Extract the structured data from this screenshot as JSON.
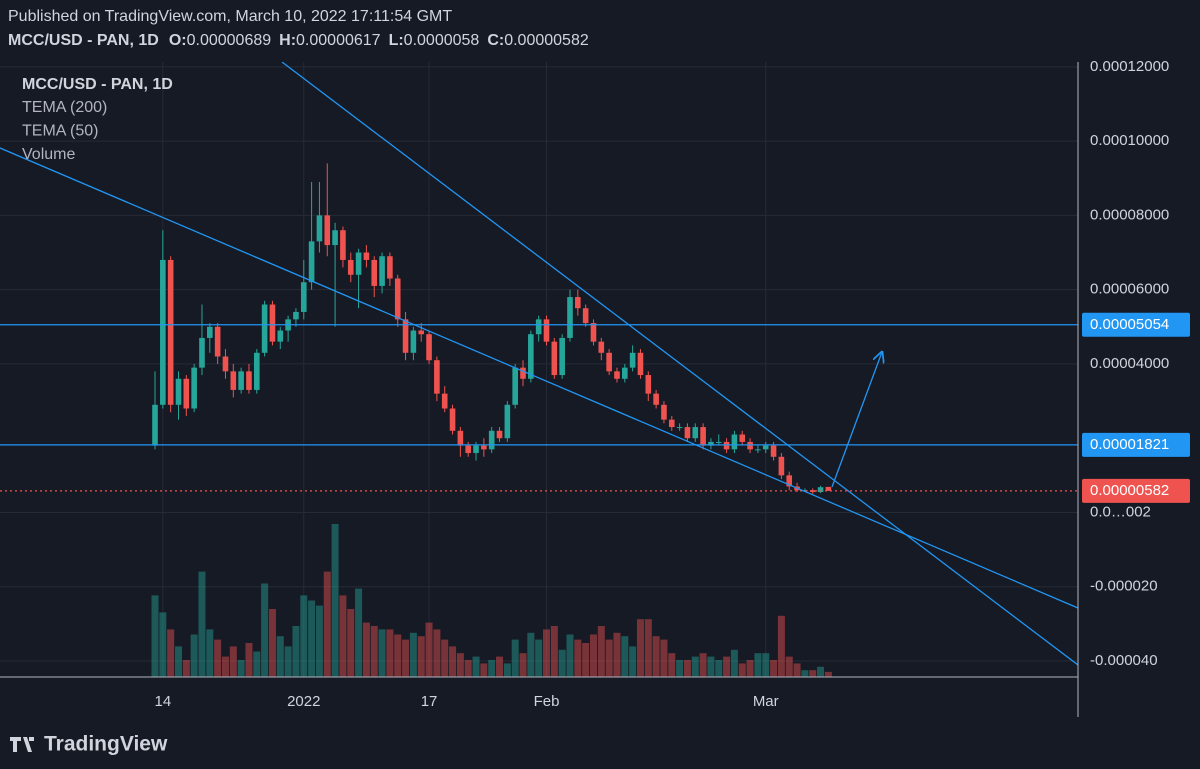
{
  "chart_data": {
    "type": "candlestick",
    "published": "Published on TradingView.com, March 10, 2022 17:11:54 GMT",
    "symbol": "MCC/USD - PAN, 1D",
    "ohlc_labels": [
      "O:",
      "H:",
      "L:",
      "C:"
    ],
    "indicators": [
      "TEMA (200)",
      "TEMA (50)",
      "Volume"
    ],
    "logo": "TradingView",
    "up_color": "#26a69a",
    "down_color": "#ef5350",
    "line_color": "#2196f3",
    "grid": true,
    "ylim": [
      -4.43e-05,
      0.0001213
    ],
    "yticks": [
      {
        "value": 0.00012,
        "label": "0.00012000"
      },
      {
        "value": 0.0001,
        "label": "0.00010000"
      },
      {
        "value": 8e-05,
        "label": "0.00008000"
      },
      {
        "value": 6e-05,
        "label": "0.00006000"
      },
      {
        "value": 4e-05,
        "label": "0.00004000"
      },
      {
        "value": 0,
        "label": "0.0…002"
      },
      {
        "value": -2e-05,
        "label": "-0.000020"
      },
      {
        "value": -4e-05,
        "label": "-0.000040"
      }
    ],
    "xticks": [
      {
        "value": 1,
        "label": "14"
      },
      {
        "value": 19,
        "label": "2022"
      },
      {
        "value": 35,
        "label": "17"
      },
      {
        "value": 50,
        "label": "Feb"
      },
      {
        "value": 78,
        "label": "Mar"
      }
    ],
    "levels": [
      5.054e-05,
      1.821e-05
    ],
    "open": [
      1.8e-05,
      2.9e-05,
      6.8e-05,
      2.9e-05,
      3.6e-05,
      2.8e-05,
      3.9e-05,
      4.7e-05,
      5e-05,
      4.2e-05,
      3.8e-05,
      3.3e-05,
      3.8e-05,
      3.3e-05,
      4.3e-05,
      5.6e-05,
      4.6e-05,
      4.9e-05,
      5.2e-05,
      5.4e-05,
      6.2e-05,
      7.3e-05,
      8e-05,
      7.2e-05,
      7.6e-05,
      6.8e-05,
      6.4e-05,
      7e-05,
      6.8e-05,
      6.1e-05,
      6.9e-05,
      6.3e-05,
      5.2e-05,
      4.3e-05,
      4.9e-05,
      4.8e-05,
      4.1e-05,
      3.2e-05,
      2.8e-05,
      2.2e-05,
      1.8e-05,
      1.6e-05,
      1.8e-05,
      1.7e-05,
      2.2e-05,
      2e-05,
      2.9e-05,
      3.9e-05,
      3.6e-05,
      4.8e-05,
      5.2e-05,
      4.6e-05,
      3.7e-05,
      4.7e-05,
      5.8e-05,
      5.5e-05,
      5.1e-05,
      4.6e-05,
      4.3e-05,
      3.8e-05,
      3.6e-05,
      3.9e-05,
      4.3e-05,
      3.7e-05,
      3.2e-05,
      2.9e-05,
      2.5e-05,
      2.3e-05,
      2.3e-05,
      2e-05,
      2.3e-05,
      1.8e-05,
      1.9e-05,
      1.9e-05,
      1.7e-05,
      2.1e-05,
      1.9e-05,
      1.7e-05,
      1.7e-05,
      1.8e-05,
      1.5e-05,
      1e-05,
      7e-06,
      6e-06,
      6e-06,
      5.5e-06,
      6.89e-06
    ],
    "high": [
      3.8e-05,
      7.6e-05,
      6.9e-05,
      3.8e-05,
      3.7e-05,
      4e-05,
      5.6e-05,
      5.1e-05,
      5.1e-05,
      4.4e-05,
      4e-05,
      3.9e-05,
      4e-05,
      4.4e-05,
      5.7e-05,
      5.7e-05,
      5e-05,
      5.3e-05,
      5.5e-05,
      6.8e-05,
      8.9e-05,
      8.9e-05,
      9.4e-05,
      7.8e-05,
      7.7e-05,
      7e-05,
      7.1e-05,
      7.2e-05,
      6.9e-05,
      7e-05,
      7e-05,
      6.4e-05,
      5.4e-05,
      5e-05,
      5.1e-05,
      4.9e-05,
      4.2e-05,
      3.4e-05,
      2.9e-05,
      2.3e-05,
      1.9e-05,
      1.9e-05,
      2e-05,
      2.3e-05,
      2.3e-05,
      3e-05,
      4e-05,
      4.1e-05,
      4.9e-05,
      5.3e-05,
      5.3e-05,
      4.7e-05,
      4.8e-05,
      6e-05,
      6e-05,
      5.6e-05,
      5.2e-05,
      4.7e-05,
      4.4e-05,
      3.9e-05,
      4e-05,
      4.5e-05,
      4.4e-05,
      3.8e-05,
      3.3e-05,
      3e-05,
      2.6e-05,
      2.4e-05,
      2.4e-05,
      2.4e-05,
      2.4e-05,
      2e-05,
      2.1e-05,
      2e-05,
      2.2e-05,
      2.2e-05,
      2e-05,
      1.8e-05,
      1.9e-05,
      1.9e-05,
      1.6e-05,
      1.1e-05,
      8e-06,
      6.5e-06,
      6.5e-06,
      7.2e-06,
      6.17e-06
    ],
    "low": [
      1.7e-05,
      2.8e-05,
      2.7e-05,
      2.5e-05,
      2.6e-05,
      2.7e-05,
      3.7e-05,
      4.3e-05,
      4e-05,
      3.6e-05,
      3.1e-05,
      3.2e-05,
      3.2e-05,
      3.2e-05,
      4.2e-05,
      4.5e-05,
      4.4e-05,
      4.6e-05,
      5e-05,
      5.2e-05,
      6e-05,
      7e-05,
      6.9e-05,
      5e-05,
      6.6e-05,
      6.2e-05,
      5.5e-05,
      6.6e-05,
      5.8e-05,
      5.9e-05,
      6.1e-05,
      5e-05,
      4.1e-05,
      4.1e-05,
      4.6e-05,
      4e-05,
      3e-05,
      2.7e-05,
      2.1e-05,
      1.5e-05,
      1.5e-05,
      1.4e-05,
      1.5e-05,
      1.6e-05,
      1.9e-05,
      1.9e-05,
      2.8e-05,
      3.4e-05,
      3.5e-05,
      4.6e-05,
      4.5e-05,
      3.6e-05,
      3.6e-05,
      4.6e-05,
      5.3e-05,
      5e-05,
      4.5e-05,
      4.1e-05,
      3.7e-05,
      3.5e-05,
      3.5e-05,
      3.8e-05,
      3.6e-05,
      3e-05,
      2.8e-05,
      2.4e-05,
      2.2e-05,
      2.2e-05,
      1.9e-05,
      1.9e-05,
      1.7e-05,
      1.7e-05,
      1.8e-05,
      1.6e-05,
      1.6e-05,
      1.8e-05,
      1.6e-05,
      1.6e-05,
      1.6e-05,
      1.4e-05,
      9e-06,
      6e-06,
      5.5e-06,
      5.5e-06,
      5e-06,
      5.2e-06,
      5.8e-06
    ],
    "close": [
      2.9e-05,
      6.8e-05,
      2.9e-05,
      3.6e-05,
      2.8e-05,
      3.9e-05,
      4.7e-05,
      5e-05,
      4.2e-05,
      3.8e-05,
      3.3e-05,
      3.8e-05,
      3.3e-05,
      4.3e-05,
      5.6e-05,
      4.6e-05,
      4.9e-05,
      5.2e-05,
      5.4e-05,
      6.2e-05,
      7.3e-05,
      8e-05,
      7.2e-05,
      7.6e-05,
      6.8e-05,
      6.4e-05,
      7e-05,
      6.8e-05,
      6.1e-05,
      6.9e-05,
      6.3e-05,
      5.2e-05,
      4.3e-05,
      4.9e-05,
      4.8e-05,
      4.1e-05,
      3.2e-05,
      2.8e-05,
      2.2e-05,
      1.8e-05,
      1.6e-05,
      1.8e-05,
      1.7e-05,
      2.2e-05,
      2e-05,
      2.9e-05,
      3.9e-05,
      3.6e-05,
      4.8e-05,
      5.2e-05,
      4.6e-05,
      3.7e-05,
      4.7e-05,
      5.8e-05,
      5.5e-05,
      5.1e-05,
      4.6e-05,
      4.3e-05,
      3.8e-05,
      3.6e-05,
      3.9e-05,
      4.3e-05,
      3.7e-05,
      3.2e-05,
      2.9e-05,
      2.5e-05,
      2.3e-05,
      2.3e-05,
      2e-05,
      2.3e-05,
      1.8e-05,
      1.9e-05,
      1.9e-05,
      1.7e-05,
      2.1e-05,
      1.9e-05,
      1.7e-05,
      1.7e-05,
      1.8e-05,
      1.5e-05,
      1e-05,
      7e-06,
      6e-06,
      6e-06,
      5.5e-06,
      6.8e-06,
      5.82e-06
    ],
    "volume_ylim": [
      0,
      100
    ],
    "volume": [
      48,
      38,
      28,
      18,
      10,
      25,
      62,
      28,
      22,
      12,
      18,
      10,
      20,
      15,
      55,
      40,
      24,
      18,
      30,
      48,
      45,
      42,
      62,
      90,
      48,
      40,
      52,
      32,
      30,
      28,
      28,
      25,
      22,
      26,
      24,
      32,
      28,
      22,
      18,
      14,
      10,
      12,
      8,
      10,
      12,
      8,
      22,
      14,
      26,
      22,
      28,
      30,
      16,
      25,
      22,
      20,
      25,
      30,
      22,
      26,
      24,
      18,
      34,
      34,
      24,
      22,
      14,
      10,
      10,
      12,
      14,
      12,
      10,
      12,
      16,
      8,
      10,
      14,
      14,
      10,
      36,
      12,
      8,
      4,
      4,
      6,
      3
    ]
  }
}
